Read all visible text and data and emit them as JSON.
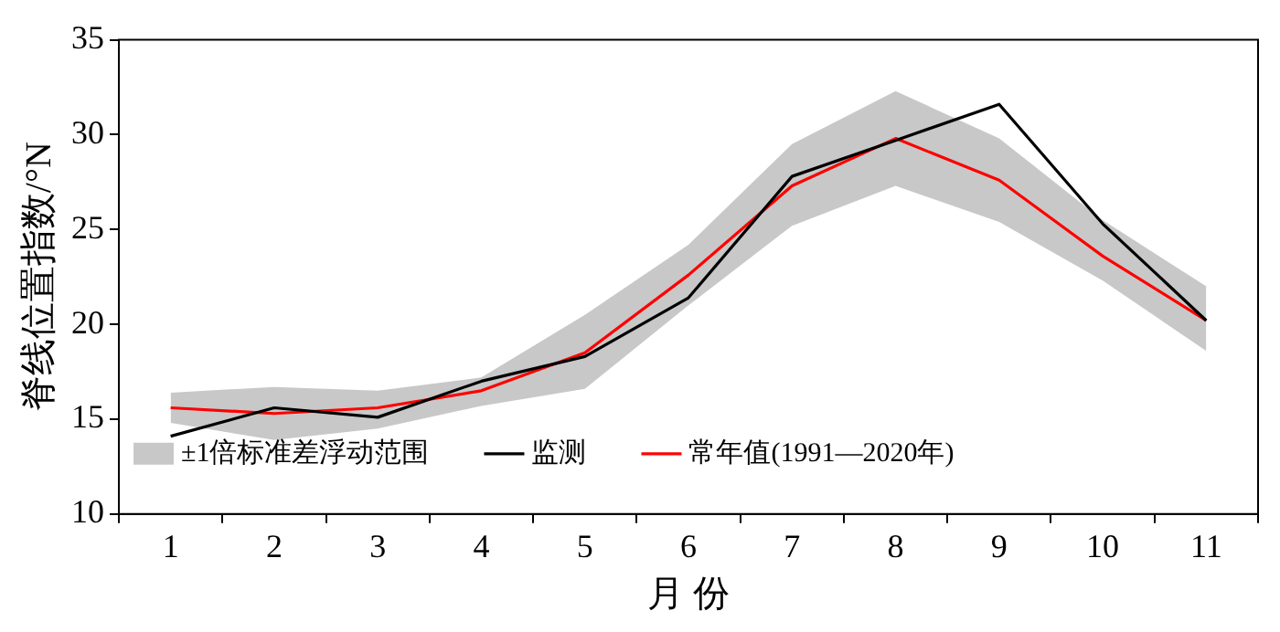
{
  "chart_data": {
    "type": "line",
    "xlabel": "月 份",
    "ylabel": "脊线位置指数/°N",
    "categories": [
      "1",
      "2",
      "3",
      "4",
      "5",
      "6",
      "7",
      "8",
      "9",
      "10",
      "11"
    ],
    "series": [
      {
        "name": "±1倍标准差浮动范围",
        "type": "area",
        "color": "#c8c8c8",
        "values": [
          null,
          null,
          null,
          null,
          null,
          null,
          null,
          null,
          null,
          null,
          null
        ],
        "lower": [
          14.8,
          13.9,
          14.5,
          15.7,
          16.6,
          21.0,
          25.2,
          27.3,
          25.4,
          22.3,
          18.6
        ],
        "upper": [
          16.4,
          16.7,
          16.5,
          17.2,
          20.5,
          24.2,
          29.5,
          32.3,
          29.8,
          25.5,
          22.0
        ]
      },
      {
        "name": "监测",
        "type": "line",
        "color": "#000000",
        "values": [
          14.1,
          15.6,
          15.1,
          17.0,
          18.3,
          21.4,
          27.8,
          29.7,
          31.6,
          25.3,
          20.2
        ]
      },
      {
        "name": "常年值(1991—2020年)",
        "type": "line",
        "color": "#ff0000",
        "values": [
          15.6,
          15.3,
          15.6,
          16.5,
          18.5,
          22.6,
          27.3,
          29.8,
          27.6,
          23.6,
          20.2
        ]
      }
    ],
    "ylim": [
      10,
      35
    ],
    "yticks": [
      10,
      15,
      20,
      25,
      30,
      35
    ],
    "grid": false,
    "legend": "bottom left",
    "marker": "none",
    "line_style": "solid"
  }
}
